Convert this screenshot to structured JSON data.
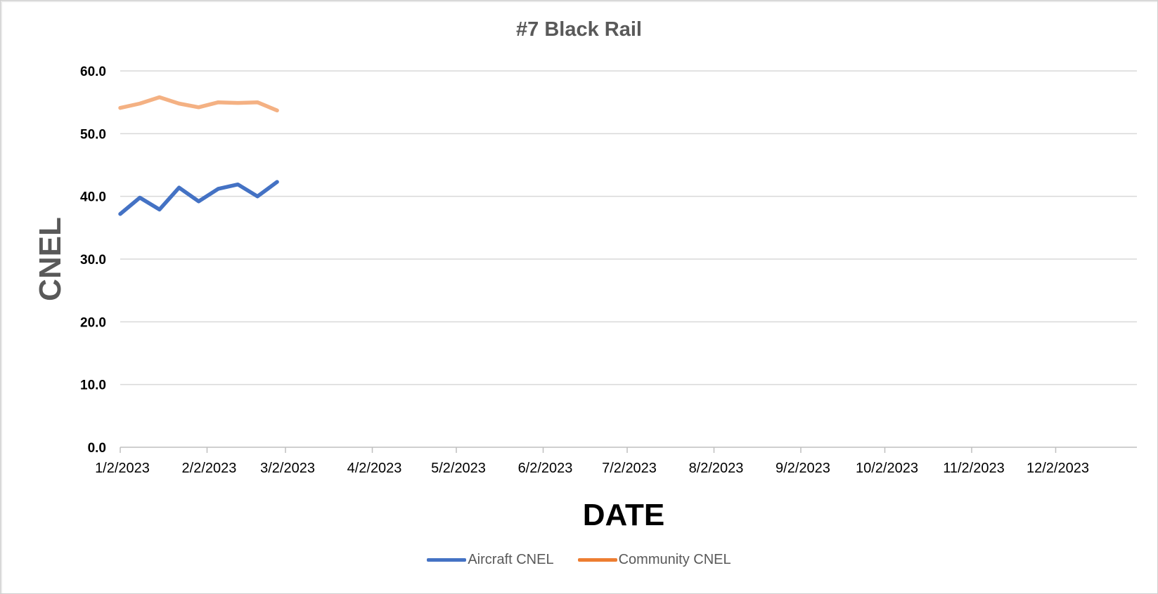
{
  "chart_data": {
    "type": "line",
    "title": "#7 Black Rail",
    "xlabel": "DATE",
    "ylabel": "CNEL",
    "ylim": [
      0,
      60
    ],
    "yticks": [
      "0.0",
      "10.0",
      "20.0",
      "30.0",
      "40.0",
      "50.0",
      "60.0"
    ],
    "xlim": [
      "2023-01-02",
      "2023-12-31"
    ],
    "xticks": [
      {
        "date": "2023-01-02",
        "label": "1/2/2023"
      },
      {
        "date": "2023-02-02",
        "label": "2/2/2023"
      },
      {
        "date": "2023-03-02",
        "label": "3/2/2023"
      },
      {
        "date": "2023-04-02",
        "label": "4/2/2023"
      },
      {
        "date": "2023-05-02",
        "label": "5/2/2023"
      },
      {
        "date": "2023-06-02",
        "label": "6/2/2023"
      },
      {
        "date": "2023-07-02",
        "label": "7/2/2023"
      },
      {
        "date": "2023-08-02",
        "label": "8/2/2023"
      },
      {
        "date": "2023-09-02",
        "label": "9/2/2023"
      },
      {
        "date": "2023-10-02",
        "label": "10/2/2023"
      },
      {
        "date": "2023-11-02",
        "label": "11/2/2023"
      },
      {
        "date": "2023-12-02",
        "label": "12/2/2023"
      }
    ],
    "x": [
      "2023-01-02",
      "2023-01-09",
      "2023-01-16",
      "2023-01-23",
      "2023-01-30",
      "2023-02-06",
      "2023-02-13",
      "2023-02-20",
      "2023-02-27"
    ],
    "series": [
      {
        "name": "Aircraft CNEL",
        "color": "#4472C4",
        "values": [
          37.2,
          39.8,
          37.9,
          41.4,
          39.2,
          41.2,
          41.9,
          40.0,
          42.3
        ]
      },
      {
        "name": "Community CNEL",
        "color": "#F4B183",
        "legend_color": "#ED7D31",
        "values": [
          54.1,
          54.8,
          55.8,
          54.8,
          54.2,
          55.0,
          54.9,
          55.0,
          53.7
        ]
      }
    ],
    "grid": true,
    "legend_position": "bottom"
  }
}
